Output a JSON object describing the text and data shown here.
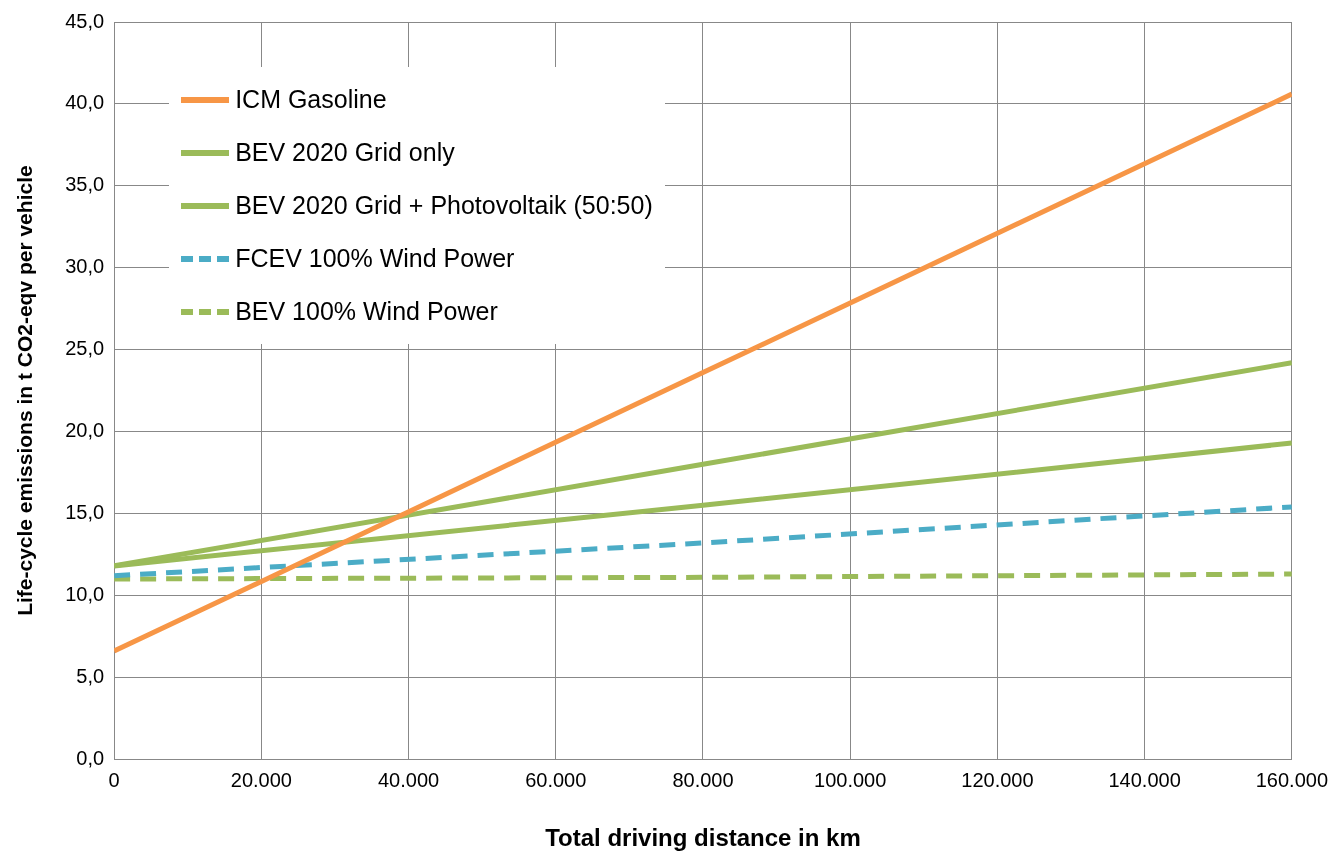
{
  "chart_data": {
    "type": "line",
    "xlabel": "Total driving distance in km",
    "ylabel": "Life-cycle emissions in t CO2-eqv per vehicle",
    "xlim": [
      0,
      160000
    ],
    "ylim": [
      0,
      45
    ],
    "xticks": [
      {
        "value": 0,
        "label": "0"
      },
      {
        "value": 20000,
        "label": "20.000"
      },
      {
        "value": 40000,
        "label": "40.000"
      },
      {
        "value": 60000,
        "label": "60.000"
      },
      {
        "value": 80000,
        "label": "80.000"
      },
      {
        "value": 100000,
        "label": "100.000"
      },
      {
        "value": 120000,
        "label": "120.000"
      },
      {
        "value": 140000,
        "label": "140.000"
      },
      {
        "value": 160000,
        "label": "160.000"
      }
    ],
    "yticks": [
      {
        "value": 0,
        "label": "0,0"
      },
      {
        "value": 5,
        "label": "5,0"
      },
      {
        "value": 10,
        "label": "10,0"
      },
      {
        "value": 15,
        "label": "15,0"
      },
      {
        "value": 20,
        "label": "20,0"
      },
      {
        "value": 25,
        "label": "25,0"
      },
      {
        "value": 30,
        "label": "30,0"
      },
      {
        "value": 35,
        "label": "35,0"
      },
      {
        "value": 40,
        "label": "40,0"
      },
      {
        "value": 45,
        "label": "45,0"
      }
    ],
    "grid": true,
    "legend": "top left",
    "marker": "none",
    "x": [
      0,
      80000,
      160000
    ],
    "series": [
      {
        "name": "ICM Gasoline",
        "color": "#f79646",
        "values": [
          6.6,
          23.6,
          40.6
        ],
        "line_style": "solid"
      },
      {
        "name": "BEV 2020 Grid only",
        "color": "#9bbb59",
        "values": [
          11.8,
          18.0,
          24.2
        ],
        "line_style": "solid"
      },
      {
        "name": "BEV 2020 Grid + Photovoltaik (50:50)",
        "color": "#9bbb59",
        "values": [
          11.8,
          15.5,
          19.3
        ],
        "line_style": "solid"
      },
      {
        "name": "FCEV 100% Wind Power",
        "color": "#4bacc6",
        "values": [
          11.2,
          13.2,
          15.4
        ],
        "line_style": "dashed"
      },
      {
        "name": "BEV 100% Wind Power",
        "color": "#9bbb59",
        "values": [
          11.0,
          11.1,
          11.3
        ],
        "line_style": "dashed"
      }
    ]
  }
}
